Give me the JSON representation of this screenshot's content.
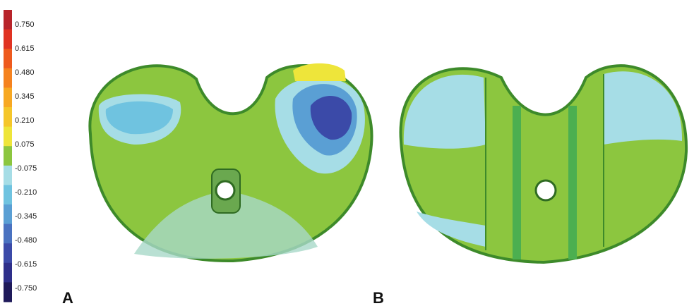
{
  "colorbar": {
    "labels": [
      "0.750",
      "0.615",
      "0.480",
      "0.345",
      "0.210",
      "0.075",
      "-0.075",
      "-0.210",
      "-0.345",
      "-0.480",
      "-0.615",
      "-0.750"
    ]
  },
  "panels": [
    {
      "label": "A"
    },
    {
      "label": "B"
    }
  ]
}
